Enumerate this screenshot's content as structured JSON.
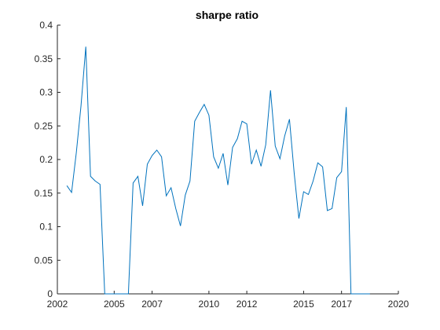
{
  "chart_data": {
    "type": "line",
    "title": "sharpe ratio",
    "xlabel": "",
    "ylabel": "",
    "xlim": [
      2002,
      2020
    ],
    "ylim": [
      0,
      0.4
    ],
    "xticks": [
      2002,
      2005,
      2007,
      2010,
      2012,
      2015,
      2017,
      2020
    ],
    "xtick_labels": [
      "2002",
      "2005",
      "2007",
      "2010",
      "2012",
      "2015",
      "2017",
      "2020"
    ],
    "yticks": [
      0,
      0.05,
      0.1,
      0.15,
      0.2,
      0.25,
      0.3,
      0.35,
      0.4
    ],
    "ytick_labels": [
      "0",
      "0.05",
      "0.1",
      "0.15",
      "0.2",
      "0.25",
      "0.3",
      "0.35",
      "0.4"
    ],
    "grid": false,
    "line_color": "#0072BD",
    "series": [
      {
        "x": [
          2002.5,
          2002.75,
          2003.0,
          2003.25,
          2003.5,
          2003.75,
          2004.0,
          2004.25,
          2004.5,
          2004.75,
          2005.0,
          2005.25,
          2005.5,
          2005.75,
          2006.0,
          2006.25,
          2006.5,
          2006.75,
          2007.0,
          2007.25,
          2007.5,
          2007.75,
          2008.0,
          2008.25,
          2008.5,
          2008.75,
          2009.0,
          2009.25,
          2009.5,
          2009.75,
          2010.0,
          2010.25,
          2010.5,
          2010.75,
          2011.0,
          2011.25,
          2011.5,
          2011.75,
          2012.0,
          2012.25,
          2012.5,
          2012.75,
          2013.0,
          2013.25,
          2013.5,
          2013.75,
          2014.0,
          2014.25,
          2014.5,
          2014.75,
          2015.0,
          2015.25,
          2015.5,
          2015.75,
          2016.0,
          2016.25,
          2016.5,
          2016.75,
          2017.0,
          2017.25,
          2017.5,
          2017.75,
          2018.0,
          2018.25,
          2018.5
        ],
        "values": [
          0.161,
          0.151,
          0.21,
          0.28,
          0.368,
          0.175,
          0.168,
          0.163,
          0.0,
          0.0,
          0.0,
          0.0,
          0.0,
          0.0,
          0.165,
          0.175,
          0.131,
          0.193,
          0.206,
          0.214,
          0.204,
          0.146,
          0.158,
          0.127,
          0.101,
          0.147,
          0.168,
          0.257,
          0.27,
          0.282,
          0.266,
          0.204,
          0.187,
          0.209,
          0.162,
          0.218,
          0.231,
          0.257,
          0.253,
          0.193,
          0.214,
          0.19,
          0.222,
          0.303,
          0.22,
          0.201,
          0.235,
          0.26,
          0.18,
          0.112,
          0.152,
          0.148,
          0.168,
          0.195,
          0.189,
          0.124,
          0.127,
          0.173,
          0.182,
          0.278,
          0.0,
          0.0,
          0.0,
          0.0,
          0.0
        ]
      }
    ]
  }
}
